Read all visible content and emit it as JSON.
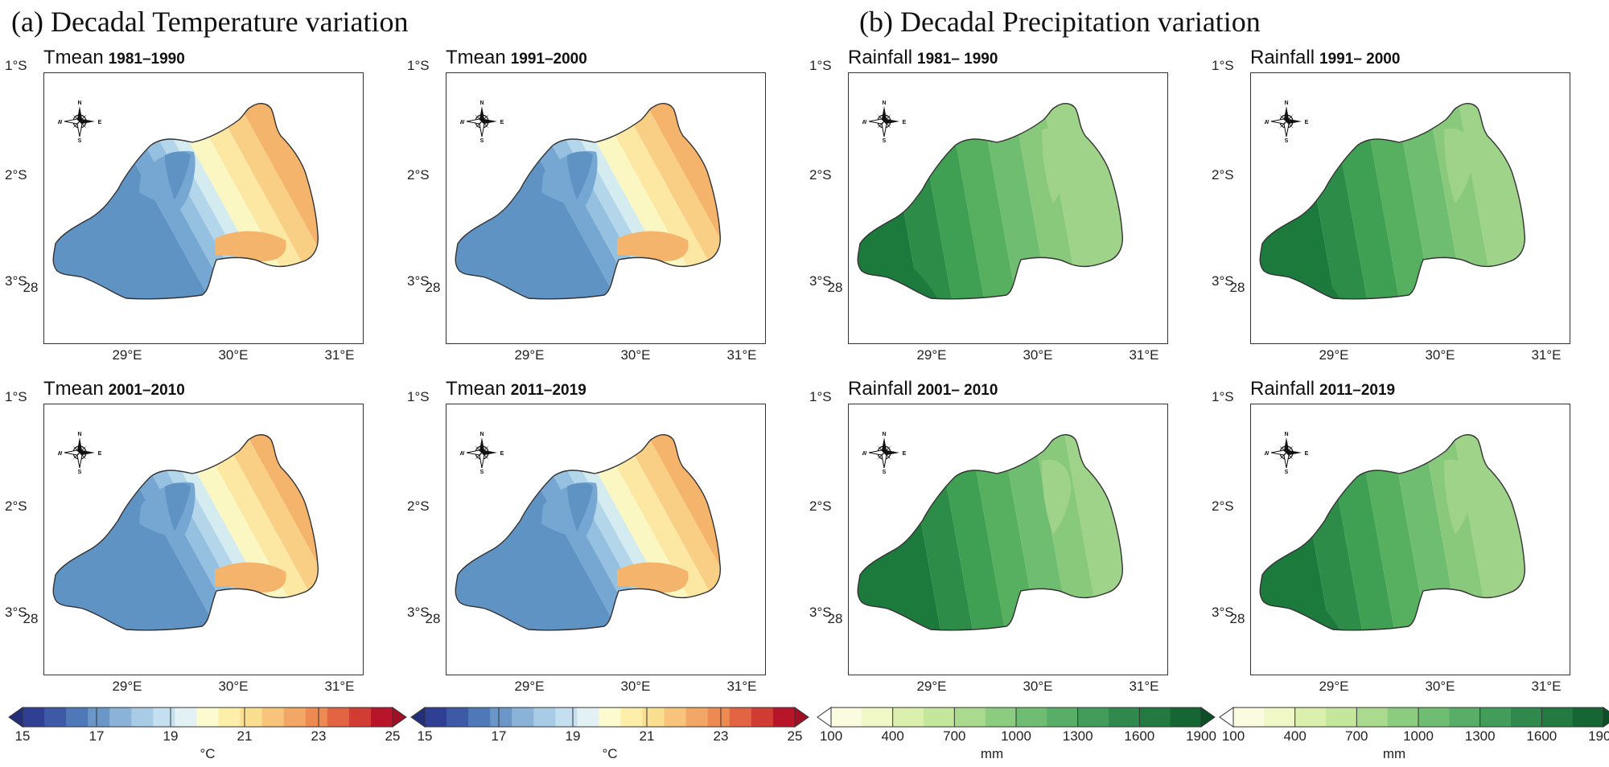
{
  "figure": {
    "title_a": "(a) Decadal Temperature variation",
    "title_b": "(b) Decadal Precipitation variation"
  },
  "chart_data": [
    {
      "type": "heatmap",
      "variable": "Tmean",
      "period": "1981–1990",
      "group": "temperature",
      "ylabels": [
        "1°S",
        "2°S",
        "3°S"
      ],
      "xlabels": [
        "28",
        "29°E",
        "30°E",
        "31°E"
      ],
      "ylim": [
        -3,
        -1
      ],
      "xlim": [
        28,
        31
      ],
      "field_note": "cool west (~16–19 °C), warm east (~20–22 °C)"
    },
    {
      "type": "heatmap",
      "variable": "Tmean",
      "period": "1991–2000",
      "group": "temperature",
      "ylabels": [
        "1°S",
        "2°S",
        "3°S"
      ],
      "xlabels": [
        "28",
        "29°E",
        "30°E",
        "31°E"
      ],
      "ylim": [
        -3,
        -1
      ],
      "xlim": [
        28,
        31
      ]
    },
    {
      "type": "heatmap",
      "variable": "Tmean",
      "period": "2001–2010",
      "group": "temperature",
      "ylabels": [
        "1°S",
        "2°S",
        "3°S"
      ],
      "xlabels": [
        "28",
        "29°E",
        "30°E",
        "31°E"
      ],
      "ylim": [
        -3,
        -1
      ],
      "xlim": [
        28,
        31
      ]
    },
    {
      "type": "heatmap",
      "variable": "Tmean",
      "period": "2011–2019",
      "group": "temperature",
      "ylabels": [
        "1°S",
        "2°S",
        "3°S"
      ],
      "xlabels": [
        "28",
        "29°E",
        "30°E",
        "31°E"
      ],
      "ylim": [
        -3,
        -1
      ],
      "xlim": [
        28,
        31
      ]
    },
    {
      "type": "heatmap",
      "variable": "Rainfall",
      "period": "1981– 1990",
      "group": "rainfall",
      "ylabels": [
        "1°S",
        "2°S",
        "3°S"
      ],
      "xlabels": [
        "28",
        "29°E",
        "30°E",
        "31°E"
      ],
      "ylim": [
        -3,
        -1
      ],
      "xlim": [
        28,
        31
      ]
    },
    {
      "type": "heatmap",
      "variable": "Rainfall",
      "period": "1991– 2000",
      "group": "rainfall",
      "ylabels": [
        "1°S",
        "2°S",
        "3°S"
      ],
      "xlabels": [
        "28",
        "29°E",
        "30°E",
        "31°E"
      ],
      "ylim": [
        -3,
        -1
      ],
      "xlim": [
        28,
        31
      ]
    },
    {
      "type": "heatmap",
      "variable": "Rainfall",
      "period": "2001– 2010",
      "group": "rainfall",
      "ylabels": [
        "1°S",
        "2°S",
        "3°S"
      ],
      "xlabels": [
        "28",
        "29°E",
        "30°E",
        "31°E"
      ],
      "ylim": [
        -3,
        -1
      ],
      "xlim": [
        28,
        31
      ]
    },
    {
      "type": "heatmap",
      "variable": "Rainfall",
      "period": "2011–2019",
      "group": "rainfall",
      "ylabels": [
        "1°S",
        "2°S",
        "3°S"
      ],
      "xlabels": [
        "28",
        "29°E",
        "30°E",
        "31°E"
      ],
      "ylim": [
        -3,
        -1
      ],
      "xlim": [
        28,
        31
      ]
    }
  ],
  "colorbars": [
    {
      "unit": "°C",
      "ticks": [
        "15",
        "17",
        "19",
        "21",
        "23",
        "25"
      ],
      "range": [
        15,
        25
      ],
      "colors": [
        "#2f3f93",
        "#3c5aa6",
        "#4e78b8",
        "#6a96c8",
        "#8bb3d8",
        "#a9cce6",
        "#c4dff0",
        "#e3f1f5",
        "#fcfbd0",
        "#fdefa9",
        "#fbdf91",
        "#f8c47a",
        "#f2a765",
        "#ec8a52",
        "#e26442",
        "#d13d33",
        "#b8152a"
      ],
      "arrow_low": "#22307a",
      "arrow_high": "#a00f24"
    },
    {
      "unit": "°C",
      "ticks": [
        "15",
        "17",
        "19",
        "21",
        "23",
        "25"
      ],
      "range": [
        15,
        25
      ],
      "colors": [
        "#2f3f93",
        "#3c5aa6",
        "#4e78b8",
        "#6a96c8",
        "#8bb3d8",
        "#a9cce6",
        "#c4dff0",
        "#e3f1f5",
        "#fcfbd0",
        "#fdefa9",
        "#fbdf91",
        "#f8c47a",
        "#f2a765",
        "#ec8a52",
        "#e26442",
        "#d13d33",
        "#b8152a"
      ],
      "arrow_low": "#22307a",
      "arrow_high": "#a00f24"
    },
    {
      "unit": "mm",
      "ticks": [
        "100",
        "400",
        "700",
        "1000",
        "1300",
        "1600",
        "1900"
      ],
      "range": [
        100,
        1900
      ],
      "colors": [
        "#fbfbe0",
        "#eff8c6",
        "#dcf0ae",
        "#c4e79c",
        "#a9da8d",
        "#8ccc7f",
        "#6fbd72",
        "#58ae66",
        "#439d5a",
        "#318a4d",
        "#237a41",
        "#166634"
      ],
      "arrow_low": "#ffffff",
      "arrow_high": "#0b4f27"
    },
    {
      "unit": "mm",
      "ticks": [
        "100",
        "400",
        "700",
        "1000",
        "1300",
        "1600",
        "1900"
      ],
      "range": [
        100,
        1900
      ],
      "colors": [
        "#fbfbe0",
        "#eff8c6",
        "#dcf0ae",
        "#c4e79c",
        "#a9da8d",
        "#8ccc7f",
        "#6fbd72",
        "#58ae66",
        "#439d5a",
        "#318a4d",
        "#237a41",
        "#166634"
      ],
      "arrow_low": "#ffffff",
      "arrow_high": "#0b4f27"
    }
  ],
  "compass_labels": {
    "n": "N",
    "s": "S",
    "e": "E",
    "w": "W"
  },
  "palettes": {
    "temperature": {
      "bands": [
        "#5f93c4",
        "#76a7d2",
        "#95c0e0",
        "#b3d6eb",
        "#d4ebf0",
        "#fbf7c3",
        "#fce7a3",
        "#f9cf86",
        "#f4b46c"
      ]
    },
    "rainfall": {
      "bands": [
        "#1d7a3d",
        "#2d8d48",
        "#3f9f52",
        "#56b060",
        "#6fbd70",
        "#88c97c",
        "#9ed389"
      ]
    }
  }
}
